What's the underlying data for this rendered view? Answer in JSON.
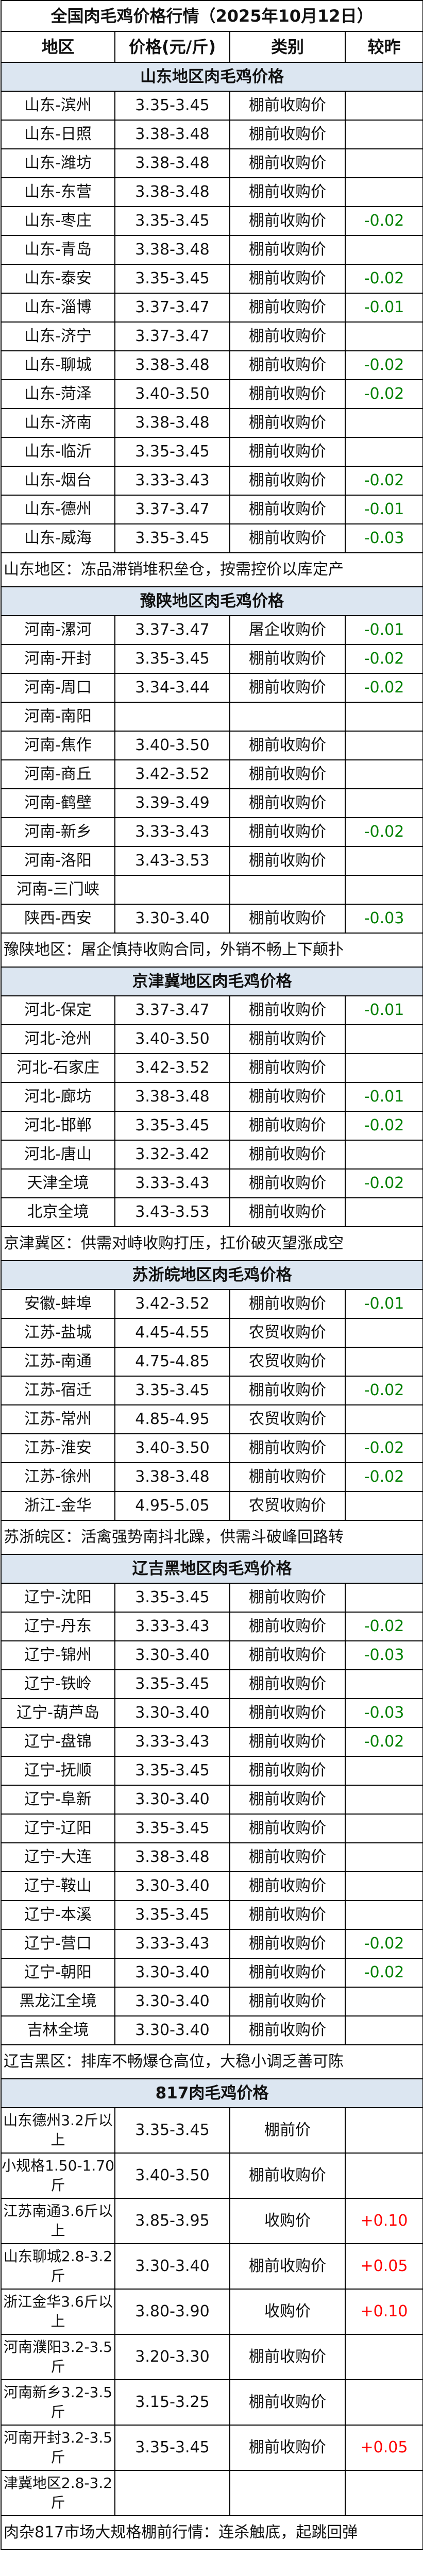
{
  "title": "全国肉毛鸡价格行情（2025年10月12日）",
  "headers": [
    "地区",
    "价格(元/斤)",
    "类别",
    "较昨"
  ],
  "colors": {
    "down": "#008000",
    "up": "#ff0000",
    "section_bg": "#dce6f1"
  },
  "sections": [
    {
      "title": "山东地区肉毛鸡价格",
      "tall": false,
      "rows": [
        [
          "山东-滨州",
          "3.35-3.45",
          "棚前收购价",
          ""
        ],
        [
          "山东-日照",
          "3.38-3.48",
          "棚前收购价",
          ""
        ],
        [
          "山东-潍坊",
          "3.38-3.48",
          "棚前收购价",
          ""
        ],
        [
          "山东-东营",
          "3.38-3.48",
          "棚前收购价",
          ""
        ],
        [
          "山东-枣庄",
          "3.35-3.45",
          "棚前收购价",
          "-0.02"
        ],
        [
          "山东-青岛",
          "3.38-3.48",
          "棚前收购价",
          ""
        ],
        [
          "山东-泰安",
          "3.35-3.45",
          "棚前收购价",
          "-0.02"
        ],
        [
          "山东-淄博",
          "3.37-3.47",
          "棚前收购价",
          "-0.01"
        ],
        [
          "山东-济宁",
          "3.37-3.47",
          "棚前收购价",
          ""
        ],
        [
          "山东-聊城",
          "3.38-3.48",
          "棚前收购价",
          "-0.02"
        ],
        [
          "山东-菏泽",
          "3.40-3.50",
          "棚前收购价",
          "-0.02"
        ],
        [
          "山东-济南",
          "3.38-3.48",
          "棚前收购价",
          ""
        ],
        [
          "山东-临沂",
          "3.35-3.45",
          "棚前收购价",
          ""
        ],
        [
          "山东-烟台",
          "3.33-3.43",
          "棚前收购价",
          "-0.02"
        ],
        [
          "山东-德州",
          "3.37-3.47",
          "棚前收购价",
          "-0.01"
        ],
        [
          "山东-威海",
          "3.35-3.45",
          "棚前收购价",
          "-0.03"
        ]
      ],
      "note": "山东地区：冻品滞销堆积垒仓，按需控价以库定产"
    },
    {
      "title": "豫陕地区肉毛鸡价格",
      "tall": false,
      "rows": [
        [
          "河南-漯河",
          "3.37-3.47",
          "屠企收购价",
          "-0.01"
        ],
        [
          "河南-开封",
          "3.35-3.45",
          "棚前收购价",
          "-0.02"
        ],
        [
          "河南-周口",
          "3.34-3.44",
          "棚前收购价",
          "-0.02"
        ],
        [
          "河南-南阳",
          "",
          "",
          ""
        ],
        [
          "河南-焦作",
          "3.40-3.50",
          "棚前收购价",
          ""
        ],
        [
          "河南-商丘",
          "3.42-3.52",
          "棚前收购价",
          ""
        ],
        [
          "河南-鹤壁",
          "3.39-3.49",
          "棚前收购价",
          ""
        ],
        [
          "河南-新乡",
          "3.33-3.43",
          "棚前收购价",
          "-0.02"
        ],
        [
          "河南-洛阳",
          "3.43-3.53",
          "棚前收购价",
          ""
        ],
        [
          "河南-三门峡",
          "",
          "",
          ""
        ],
        [
          "陕西-西安",
          "3.30-3.40",
          "棚前收购价",
          "-0.03"
        ]
      ],
      "note": "豫陕地区：屠企慎持收购合同，外销不畅上下颠扑"
    },
    {
      "title": "京津冀地区肉毛鸡价格",
      "tall": false,
      "rows": [
        [
          "河北-保定",
          "3.37-3.47",
          "棚前收购价",
          "-0.01"
        ],
        [
          "河北-沧州",
          "3.40-3.50",
          "棚前收购价",
          ""
        ],
        [
          "河北-石家庄",
          "3.42-3.52",
          "棚前收购价",
          ""
        ],
        [
          "河北-廊坊",
          "3.38-3.48",
          "棚前收购价",
          "-0.01"
        ],
        [
          "河北-邯郸",
          "3.35-3.45",
          "棚前收购价",
          "-0.02"
        ],
        [
          "河北-唐山",
          "3.32-3.42",
          "棚前收购价",
          ""
        ],
        [
          "天津全境",
          "3.33-3.43",
          "棚前收购价",
          "-0.02"
        ],
        [
          "北京全境",
          "3.43-3.53",
          "棚前收购价",
          ""
        ]
      ],
      "note": "京津冀区：供需对峙收购打压，扛价破灭望涨成空"
    },
    {
      "title": "苏浙皖地区肉毛鸡价格",
      "tall": false,
      "rows": [
        [
          "安徽-蚌埠",
          "3.42-3.52",
          "棚前收购价",
          "-0.01"
        ],
        [
          "江苏-盐城",
          "4.45-4.55",
          "农贸收购价",
          ""
        ],
        [
          "江苏-南通",
          "4.75-4.85",
          "农贸收购价",
          ""
        ],
        [
          "江苏-宿迁",
          "3.35-3.45",
          "棚前收购价",
          "-0.02"
        ],
        [
          "江苏-常州",
          "4.85-4.95",
          "农贸收购价",
          ""
        ],
        [
          "江苏-淮安",
          "3.40-3.50",
          "棚前收购价",
          "-0.02"
        ],
        [
          "江苏-徐州",
          "3.38-3.48",
          "棚前收购价",
          "-0.02"
        ],
        [
          "浙江-金华",
          "4.95-5.05",
          "农贸收购价",
          ""
        ]
      ],
      "note": "苏浙皖区：活禽强势南抖北躁，供需斗破峰回路转"
    },
    {
      "title": "辽吉黑地区肉毛鸡价格",
      "tall": false,
      "rows": [
        [
          "辽宁-沈阳",
          "3.35-3.45",
          "棚前收购价",
          ""
        ],
        [
          "辽宁-丹东",
          "3.33-3.43",
          "棚前收购价",
          "-0.02"
        ],
        [
          "辽宁-锦州",
          "3.30-3.40",
          "棚前收购价",
          "-0.03"
        ],
        [
          "辽宁-铁岭",
          "3.35-3.45",
          "棚前收购价",
          ""
        ],
        [
          "辽宁-葫芦岛",
          "3.30-3.40",
          "棚前收购价",
          "-0.03"
        ],
        [
          "辽宁-盘锦",
          "3.33-3.43",
          "棚前收购价",
          "-0.02"
        ],
        [
          "辽宁-抚顺",
          "3.35-3.45",
          "棚前收购价",
          ""
        ],
        [
          "辽宁-阜新",
          "3.30-3.40",
          "棚前收购价",
          ""
        ],
        [
          "辽宁-辽阳",
          "3.35-3.45",
          "棚前收购价",
          ""
        ],
        [
          "辽宁-大连",
          "3.38-3.48",
          "棚前收购价",
          ""
        ],
        [
          "辽宁-鞍山",
          "3.30-3.40",
          "棚前收购价",
          ""
        ],
        [
          "辽宁-本溪",
          "3.35-3.45",
          "棚前收购价",
          ""
        ],
        [
          "辽宁-营口",
          "3.33-3.43",
          "棚前收购价",
          "-0.02"
        ],
        [
          "辽宁-朝阳",
          "3.30-3.40",
          "棚前收购价",
          "-0.02"
        ],
        [
          "黑龙江全境",
          "3.30-3.40",
          "棚前收购价",
          ""
        ],
        [
          "吉林全境",
          "3.30-3.40",
          "棚前收购价",
          ""
        ]
      ],
      "note": "辽吉黑区：排库不畅爆仓高位，大稳小调乏善可陈"
    },
    {
      "title": "817肉毛鸡价格",
      "tall": true,
      "rows": [
        [
          "山东德州3.2斤以上",
          "3.35-3.45",
          "棚前价",
          ""
        ],
        [
          "小规格1.50-1.70斤",
          "3.40-3.50",
          "棚前收购价",
          ""
        ],
        [
          "江苏南通3.6斤以上",
          "3.85-3.95",
          "收购价",
          "+0.10"
        ],
        [
          "山东聊城2.8-3.2斤",
          "3.30-3.40",
          "棚前收购价",
          "+0.05"
        ],
        [
          "浙江金华3.6斤以上",
          "3.80-3.90",
          "收购价",
          "+0.10"
        ],
        [
          "河南濮阳3.2-3.5斤",
          "3.20-3.30",
          "棚前收购价",
          ""
        ],
        [
          "河南新乡3.2-3.5斤",
          "3.15-3.25",
          "棚前收购价",
          ""
        ],
        [
          "河南开封3.2-3.5斤",
          "3.35-3.45",
          "棚前收购价",
          "+0.05"
        ],
        [
          "津冀地区2.8-3.2斤",
          "",
          "",
          ""
        ]
      ],
      "note": "肉杂817市场大规格棚前行情：连杀触底，起跳回弹"
    }
  ]
}
